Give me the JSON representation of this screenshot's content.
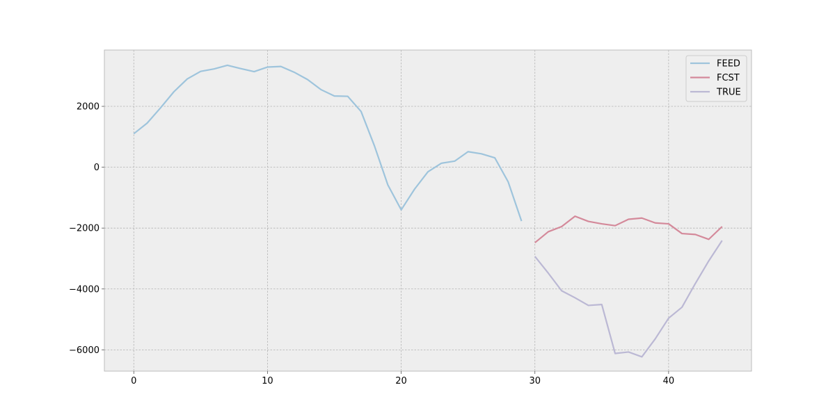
{
  "chart_data": {
    "type": "line",
    "title": "",
    "xlabel": "",
    "ylabel": "",
    "xlim": [
      -2.2,
      46.2
    ],
    "ylim": [
      -6700,
      3850
    ],
    "xticks": [
      0,
      10,
      20,
      30,
      40
    ],
    "yticks": [
      -6000,
      -4000,
      -2000,
      0,
      2000
    ],
    "tick_labels": {
      "x": [
        "0",
        "10",
        "20",
        "30",
        "40"
      ],
      "y": [
        "−6000",
        "−4000",
        "−2000",
        "0",
        "2000"
      ]
    },
    "grid": true,
    "legend_position": "top-right",
    "background": "#eeeeee",
    "series": [
      {
        "name": "FEED",
        "color": "#9ec4dc",
        "x": [
          0,
          1,
          2,
          3,
          4,
          5,
          6,
          7,
          8,
          9,
          10,
          11,
          12,
          13,
          14,
          15,
          16,
          17,
          18,
          19,
          20,
          21,
          22,
          23,
          24,
          25,
          26,
          27,
          28,
          29
        ],
        "values": [
          1100,
          1450,
          1950,
          2480,
          2900,
          3150,
          3230,
          3350,
          3240,
          3140,
          3290,
          3310,
          3120,
          2880,
          2550,
          2340,
          2330,
          1830,
          700,
          -580,
          -1400,
          -720,
          -150,
          130,
          200,
          510,
          440,
          310,
          -480,
          -1770
        ]
      },
      {
        "name": "FCST",
        "color": "#d4899a",
        "x": [
          30,
          31,
          32,
          33,
          34,
          35,
          36,
          37,
          38,
          39,
          40,
          41,
          42,
          43,
          44
        ],
        "values": [
          -2480,
          -2120,
          -1950,
          -1610,
          -1780,
          -1860,
          -1920,
          -1710,
          -1670,
          -1830,
          -1860,
          -2180,
          -2210,
          -2370,
          -1950
        ]
      },
      {
        "name": "TRUE",
        "color": "#bbb8d4",
        "x": [
          30,
          31,
          32,
          33,
          34,
          35,
          36,
          37,
          38,
          39,
          40,
          41,
          42,
          43,
          44
        ],
        "values": [
          -2930,
          -3480,
          -4060,
          -4290,
          -4540,
          -4510,
          -6120,
          -6070,
          -6230,
          -5640,
          -4960,
          -4600,
          -3820,
          -3080,
          -2410
        ]
      }
    ]
  }
}
